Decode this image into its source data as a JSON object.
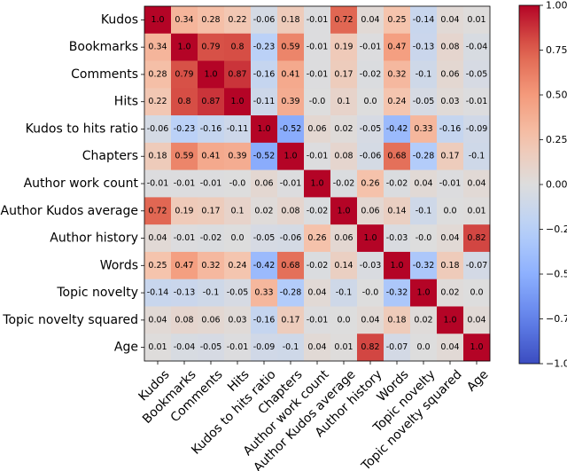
{
  "chart_data": {
    "type": "heatmap",
    "title": "",
    "labels": [
      "Kudos",
      "Bookmarks",
      "Comments",
      "Hits",
      "Kudos to hits ratio",
      "Chapters",
      "Author work count",
      "Author Kudos average",
      "Author history",
      "Words",
      "Topic novelty",
      "Topic novelty squared",
      "Age"
    ],
    "matrix": [
      [
        "1.0",
        "0.34",
        "0.28",
        "0.22",
        "-0.06",
        "0.18",
        "-0.01",
        "0.72",
        "0.04",
        "0.25",
        "-0.14",
        "0.04",
        "0.01"
      ],
      [
        "0.34",
        "1.0",
        "0.79",
        "0.8",
        "-0.23",
        "0.59",
        "-0.01",
        "0.19",
        "-0.01",
        "0.47",
        "-0.13",
        "0.08",
        "-0.04"
      ],
      [
        "0.28",
        "0.79",
        "1.0",
        "0.87",
        "-0.16",
        "0.41",
        "-0.01",
        "0.17",
        "-0.02",
        "0.32",
        "-0.1",
        "0.06",
        "-0.05"
      ],
      [
        "0.22",
        "0.8",
        "0.87",
        "1.0",
        "-0.11",
        "0.39",
        "-0.0",
        "0.1",
        "0.0",
        "0.24",
        "-0.05",
        "0.03",
        "-0.01"
      ],
      [
        "-0.06",
        "-0.23",
        "-0.16",
        "-0.11",
        "1.0",
        "-0.52",
        "0.06",
        "0.02",
        "-0.05",
        "-0.42",
        "0.33",
        "-0.16",
        "-0.09"
      ],
      [
        "0.18",
        "0.59",
        "0.41",
        "0.39",
        "-0.52",
        "1.0",
        "-0.01",
        "0.08",
        "-0.06",
        "0.68",
        "-0.28",
        "0.17",
        "-0.1"
      ],
      [
        "-0.01",
        "-0.01",
        "-0.01",
        "-0.0",
        "0.06",
        "-0.01",
        "1.0",
        "-0.02",
        "0.26",
        "-0.02",
        "0.04",
        "-0.01",
        "0.04"
      ],
      [
        "0.72",
        "0.19",
        "0.17",
        "0.1",
        "0.02",
        "0.08",
        "-0.02",
        "1.0",
        "0.06",
        "0.14",
        "-0.1",
        "0.0",
        "0.01"
      ],
      [
        "0.04",
        "-0.01",
        "-0.02",
        "0.0",
        "-0.05",
        "-0.06",
        "0.26",
        "0.06",
        "1.0",
        "-0.03",
        "-0.0",
        "0.04",
        "0.82"
      ],
      [
        "0.25",
        "0.47",
        "0.32",
        "0.24",
        "-0.42",
        "0.68",
        "-0.02",
        "0.14",
        "-0.03",
        "1.0",
        "-0.32",
        "0.18",
        "-0.07"
      ],
      [
        "-0.14",
        "-0.13",
        "-0.1",
        "-0.05",
        "0.33",
        "-0.28",
        "0.04",
        "-0.1",
        "-0.0",
        "-0.32",
        "1.0",
        "0.02",
        "0.0"
      ],
      [
        "0.04",
        "0.08",
        "0.06",
        "0.03",
        "-0.16",
        "0.17",
        "-0.01",
        "0.0",
        "0.04",
        "0.18",
        "0.02",
        "1.0",
        "0.04"
      ],
      [
        "0.01",
        "-0.04",
        "-0.05",
        "-0.01",
        "-0.09",
        "-0.1",
        "0.04",
        "0.01",
        "0.82",
        "-0.07",
        "0.0",
        "0.04",
        "1.0"
      ]
    ],
    "colormap": "coolwarm",
    "vmin": -1.0,
    "vmax": 1.0,
    "colorbar_ticks": [
      "1.00",
      "0.75",
      "0.50",
      "0.25",
      "0.00",
      "−0.25",
      "−0.50",
      "−0.75",
      "−1.00"
    ]
  }
}
